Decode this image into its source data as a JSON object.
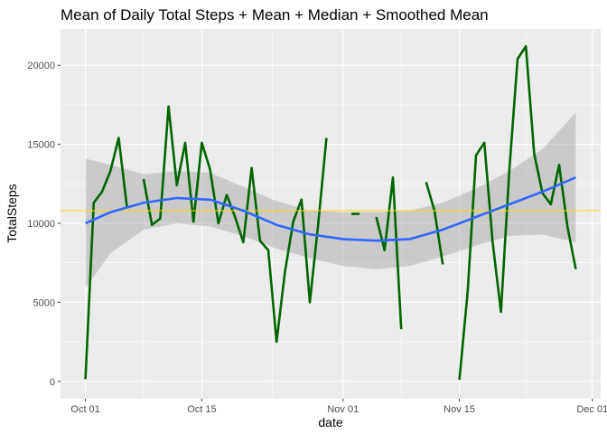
{
  "chart_data": {
    "type": "line",
    "title": "Mean of Daily Total Steps + Mean + Median + Smoothed Mean",
    "xlabel": "date",
    "ylabel": "TotalSteps",
    "x_ticks": [
      "Oct 01",
      "Oct 15",
      "Nov 01",
      "Nov 15",
      "Dec 01"
    ],
    "y_ticks": [
      "0",
      "5000",
      "10000",
      "15000",
      "20000"
    ],
    "xlim": [
      "2016-09-28",
      "2016-12-02"
    ],
    "ylim": [
      -1100,
      22300
    ],
    "grid": true,
    "colors": {
      "panel": "#ebebeb",
      "grid": "#ffffff",
      "line": "#006400",
      "smooth": "#3366ff",
      "ribbon": "#999999",
      "mean_line": "#ffd700"
    },
    "mean_value": 10800,
    "series": [
      {
        "values": [
          {
            "x": "2016-10-01",
            "y": 150
          },
          {
            "x": "2016-10-02",
            "y": 11300
          },
          {
            "x": "2016-10-03",
            "y": 12000
          },
          {
            "x": "2016-10-04",
            "y": 13300
          },
          {
            "x": "2016-10-05",
            "y": 15400
          },
          {
            "x": "2016-10-06",
            "y": 11000
          },
          {
            "x": "2016-10-07",
            "y": null
          },
          {
            "x": "2016-10-08",
            "y": 12800
          },
          {
            "x": "2016-10-09",
            "y": 9900
          },
          {
            "x": "2016-10-10",
            "y": 10300
          },
          {
            "x": "2016-10-11",
            "y": 17400
          },
          {
            "x": "2016-10-12",
            "y": 12400
          },
          {
            "x": "2016-10-13",
            "y": 15100
          },
          {
            "x": "2016-10-14",
            "y": 10100
          },
          {
            "x": "2016-10-15",
            "y": 15100
          },
          {
            "x": "2016-10-16",
            "y": 13400
          },
          {
            "x": "2016-10-17",
            "y": 10000
          },
          {
            "x": "2016-10-18",
            "y": 11800
          },
          {
            "x": "2016-10-19",
            "y": 10400
          },
          {
            "x": "2016-10-20",
            "y": 8800
          },
          {
            "x": "2016-10-21",
            "y": 13500
          },
          {
            "x": "2016-10-22",
            "y": 8900
          },
          {
            "x": "2016-10-23",
            "y": 8300
          },
          {
            "x": "2016-10-24",
            "y": 2500
          },
          {
            "x": "2016-10-25",
            "y": 6900
          },
          {
            "x": "2016-10-26",
            "y": 10100
          },
          {
            "x": "2016-10-27",
            "y": 11500
          },
          {
            "x": "2016-10-28",
            "y": 5000
          },
          {
            "x": "2016-10-29",
            "y": 9900
          },
          {
            "x": "2016-10-30",
            "y": 15400
          },
          {
            "x": "2016-10-31",
            "y": null
          },
          {
            "x": "2016-11-01",
            "y": null
          },
          {
            "x": "2016-11-02",
            "y": 10600
          },
          {
            "x": "2016-11-03",
            "y": 10600
          },
          {
            "x": "2016-11-04",
            "y": null
          },
          {
            "x": "2016-11-05",
            "y": 10400
          },
          {
            "x": "2016-11-06",
            "y": 8300
          },
          {
            "x": "2016-11-07",
            "y": 12900
          },
          {
            "x": "2016-11-08",
            "y": 3300
          },
          {
            "x": "2016-11-09",
            "y": null
          },
          {
            "x": "2016-11-10",
            "y": null
          },
          {
            "x": "2016-11-11",
            "y": 12600
          },
          {
            "x": "2016-11-12",
            "y": 10800
          },
          {
            "x": "2016-11-13",
            "y": 7400
          },
          {
            "x": "2016-11-14",
            "y": null
          },
          {
            "x": "2016-11-15",
            "y": 100
          },
          {
            "x": "2016-11-16",
            "y": 5700
          },
          {
            "x": "2016-11-17",
            "y": 14300
          },
          {
            "x": "2016-11-18",
            "y": 15100
          },
          {
            "x": "2016-11-19",
            "y": 8800
          },
          {
            "x": "2016-11-20",
            "y": 4400
          },
          {
            "x": "2016-11-21",
            "y": 13300
          },
          {
            "x": "2016-11-22",
            "y": 20400
          },
          {
            "x": "2016-11-23",
            "y": 21200
          },
          {
            "x": "2016-11-24",
            "y": 14400
          },
          {
            "x": "2016-11-25",
            "y": 11900
          },
          {
            "x": "2016-11-26",
            "y": 11200
          },
          {
            "x": "2016-11-27",
            "y": 13700
          },
          {
            "x": "2016-11-28",
            "y": 9800
          },
          {
            "x": "2016-11-29",
            "y": 7100
          }
        ]
      }
    ],
    "smooth": [
      {
        "x": "2016-10-01",
        "y": 10000,
        "lo": 5900,
        "hi": 14100
      },
      {
        "x": "2016-10-04",
        "y": 10700,
        "lo": 8100,
        "hi": 13700
      },
      {
        "x": "2016-10-08",
        "y": 11300,
        "lo": 9600,
        "hi": 13100
      },
      {
        "x": "2016-10-12",
        "y": 11600,
        "lo": 10000,
        "hi": 13300
      },
      {
        "x": "2016-10-16",
        "y": 11500,
        "lo": 9800,
        "hi": 13200
      },
      {
        "x": "2016-10-20",
        "y": 10800,
        "lo": 9200,
        "hi": 12300
      },
      {
        "x": "2016-10-24",
        "y": 9900,
        "lo": 8400,
        "hi": 11400
      },
      {
        "x": "2016-10-28",
        "y": 9300,
        "lo": 7800,
        "hi": 10800
      },
      {
        "x": "2016-11-01",
        "y": 9000,
        "lo": 7300,
        "hi": 10700
      },
      {
        "x": "2016-11-05",
        "y": 8900,
        "lo": 7100,
        "hi": 10700
      },
      {
        "x": "2016-11-09",
        "y": 9000,
        "lo": 7300,
        "hi": 10800
      },
      {
        "x": "2016-11-13",
        "y": 9600,
        "lo": 7900,
        "hi": 11300
      },
      {
        "x": "2016-11-17",
        "y": 10400,
        "lo": 8600,
        "hi": 12200
      },
      {
        "x": "2016-11-21",
        "y": 11200,
        "lo": 9200,
        "hi": 13300
      },
      {
        "x": "2016-11-25",
        "y": 12000,
        "lo": 9300,
        "hi": 14700
      },
      {
        "x": "2016-11-29",
        "y": 12900,
        "lo": 8800,
        "hi": 17000
      }
    ]
  }
}
